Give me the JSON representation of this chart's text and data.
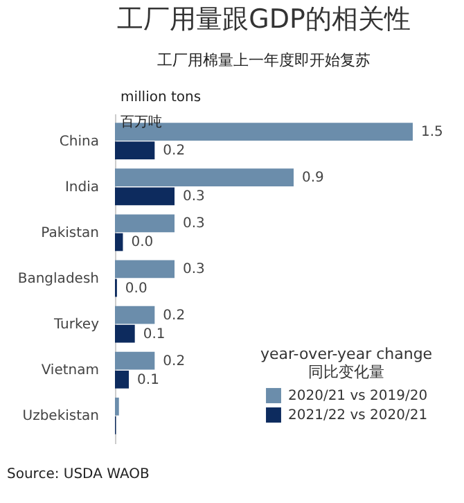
{
  "chart_data": {
    "type": "bar",
    "orientation": "horizontal",
    "title": "工厂用量跟GDP的相关性",
    "subtitle": "工厂用棉量上一年度即开始复苏",
    "categories": [
      "China",
      "India",
      "Pakistan",
      "Bangladesh",
      "Turkey",
      "Vietnam",
      "Uzbekistan"
    ],
    "series": [
      {
        "name": "2020/21 vs 2019/20",
        "color": "#6b8dab",
        "values": [
          1.5,
          0.9,
          0.3,
          0.3,
          0.2,
          0.2,
          0.02
        ],
        "value_labels": [
          "1.5",
          "0.9",
          "0.3",
          "0.3",
          "0.2",
          "0.2",
          null
        ]
      },
      {
        "name": "2021/22 vs 2020/21",
        "color": "#0d2b5e",
        "values": [
          0.2,
          0.3,
          0.04,
          0.01,
          0.1,
          0.07,
          0.005
        ],
        "value_labels": [
          "0.2",
          "0.3",
          "0.0",
          "0.0",
          "0.1",
          "0.1",
          null
        ]
      }
    ],
    "legend": "bottom right",
    "legend_title": "year-over-year change\n同比变化量",
    "grid": false,
    "annotations": [
      "million tons",
      "百万吨",
      "Source: USDA WAOB"
    ]
  }
}
